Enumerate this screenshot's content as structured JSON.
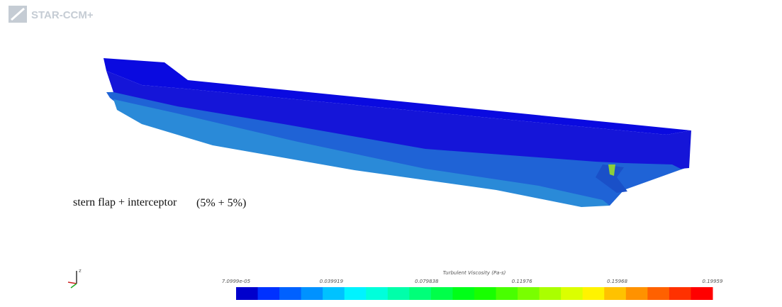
{
  "logo": "STAR-CCM+",
  "annotation": {
    "case": "stern flap + interceptor",
    "ratio": "(5% + 5%)"
  },
  "triad": {
    "axis": "z"
  },
  "colorbar": {
    "title": "Turbulent Viscosity (Pa-s)",
    "ticks": [
      "7.0999e-05",
      "0.039919",
      "0.079838",
      "0.11976",
      "0.15968",
      "0.19959"
    ]
  }
}
